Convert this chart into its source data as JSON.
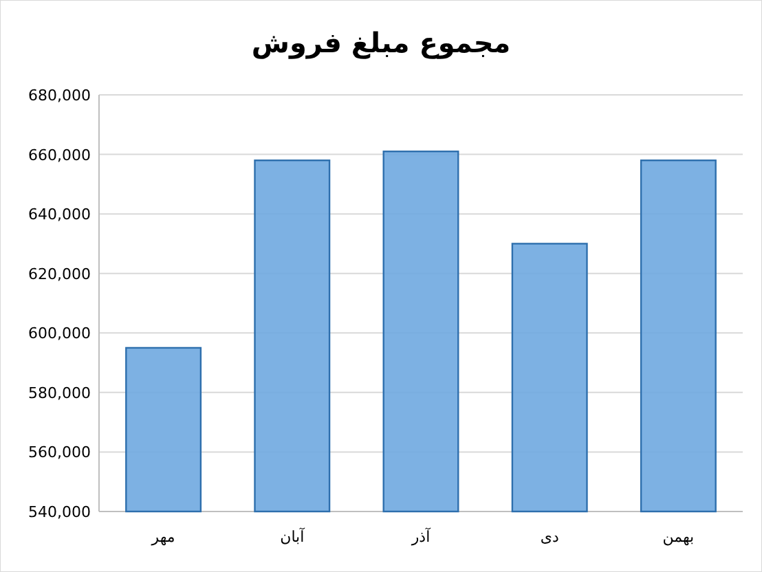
{
  "chart_data": {
    "type": "bar",
    "title": "مجموع مبلغ فروش",
    "categories": [
      "مهر",
      "آبان",
      "آذر",
      "دی",
      "بهمن"
    ],
    "values": [
      595000,
      658000,
      661000,
      630000,
      658000
    ],
    "color": "#6fa8e0",
    "ylim": [
      540000,
      680000
    ],
    "yticks": [
      {
        "value": 540000,
        "label": "540,000"
      },
      {
        "value": 560000,
        "label": "560,000"
      },
      {
        "value": 580000,
        "label": "580,000"
      },
      {
        "value": 600000,
        "label": "600,000"
      },
      {
        "value": 620000,
        "label": "620,000"
      },
      {
        "value": 640000,
        "label": "640,000"
      },
      {
        "value": 660000,
        "label": "660,000"
      },
      {
        "value": 680000,
        "label": "680,000"
      }
    ],
    "grid": true
  }
}
